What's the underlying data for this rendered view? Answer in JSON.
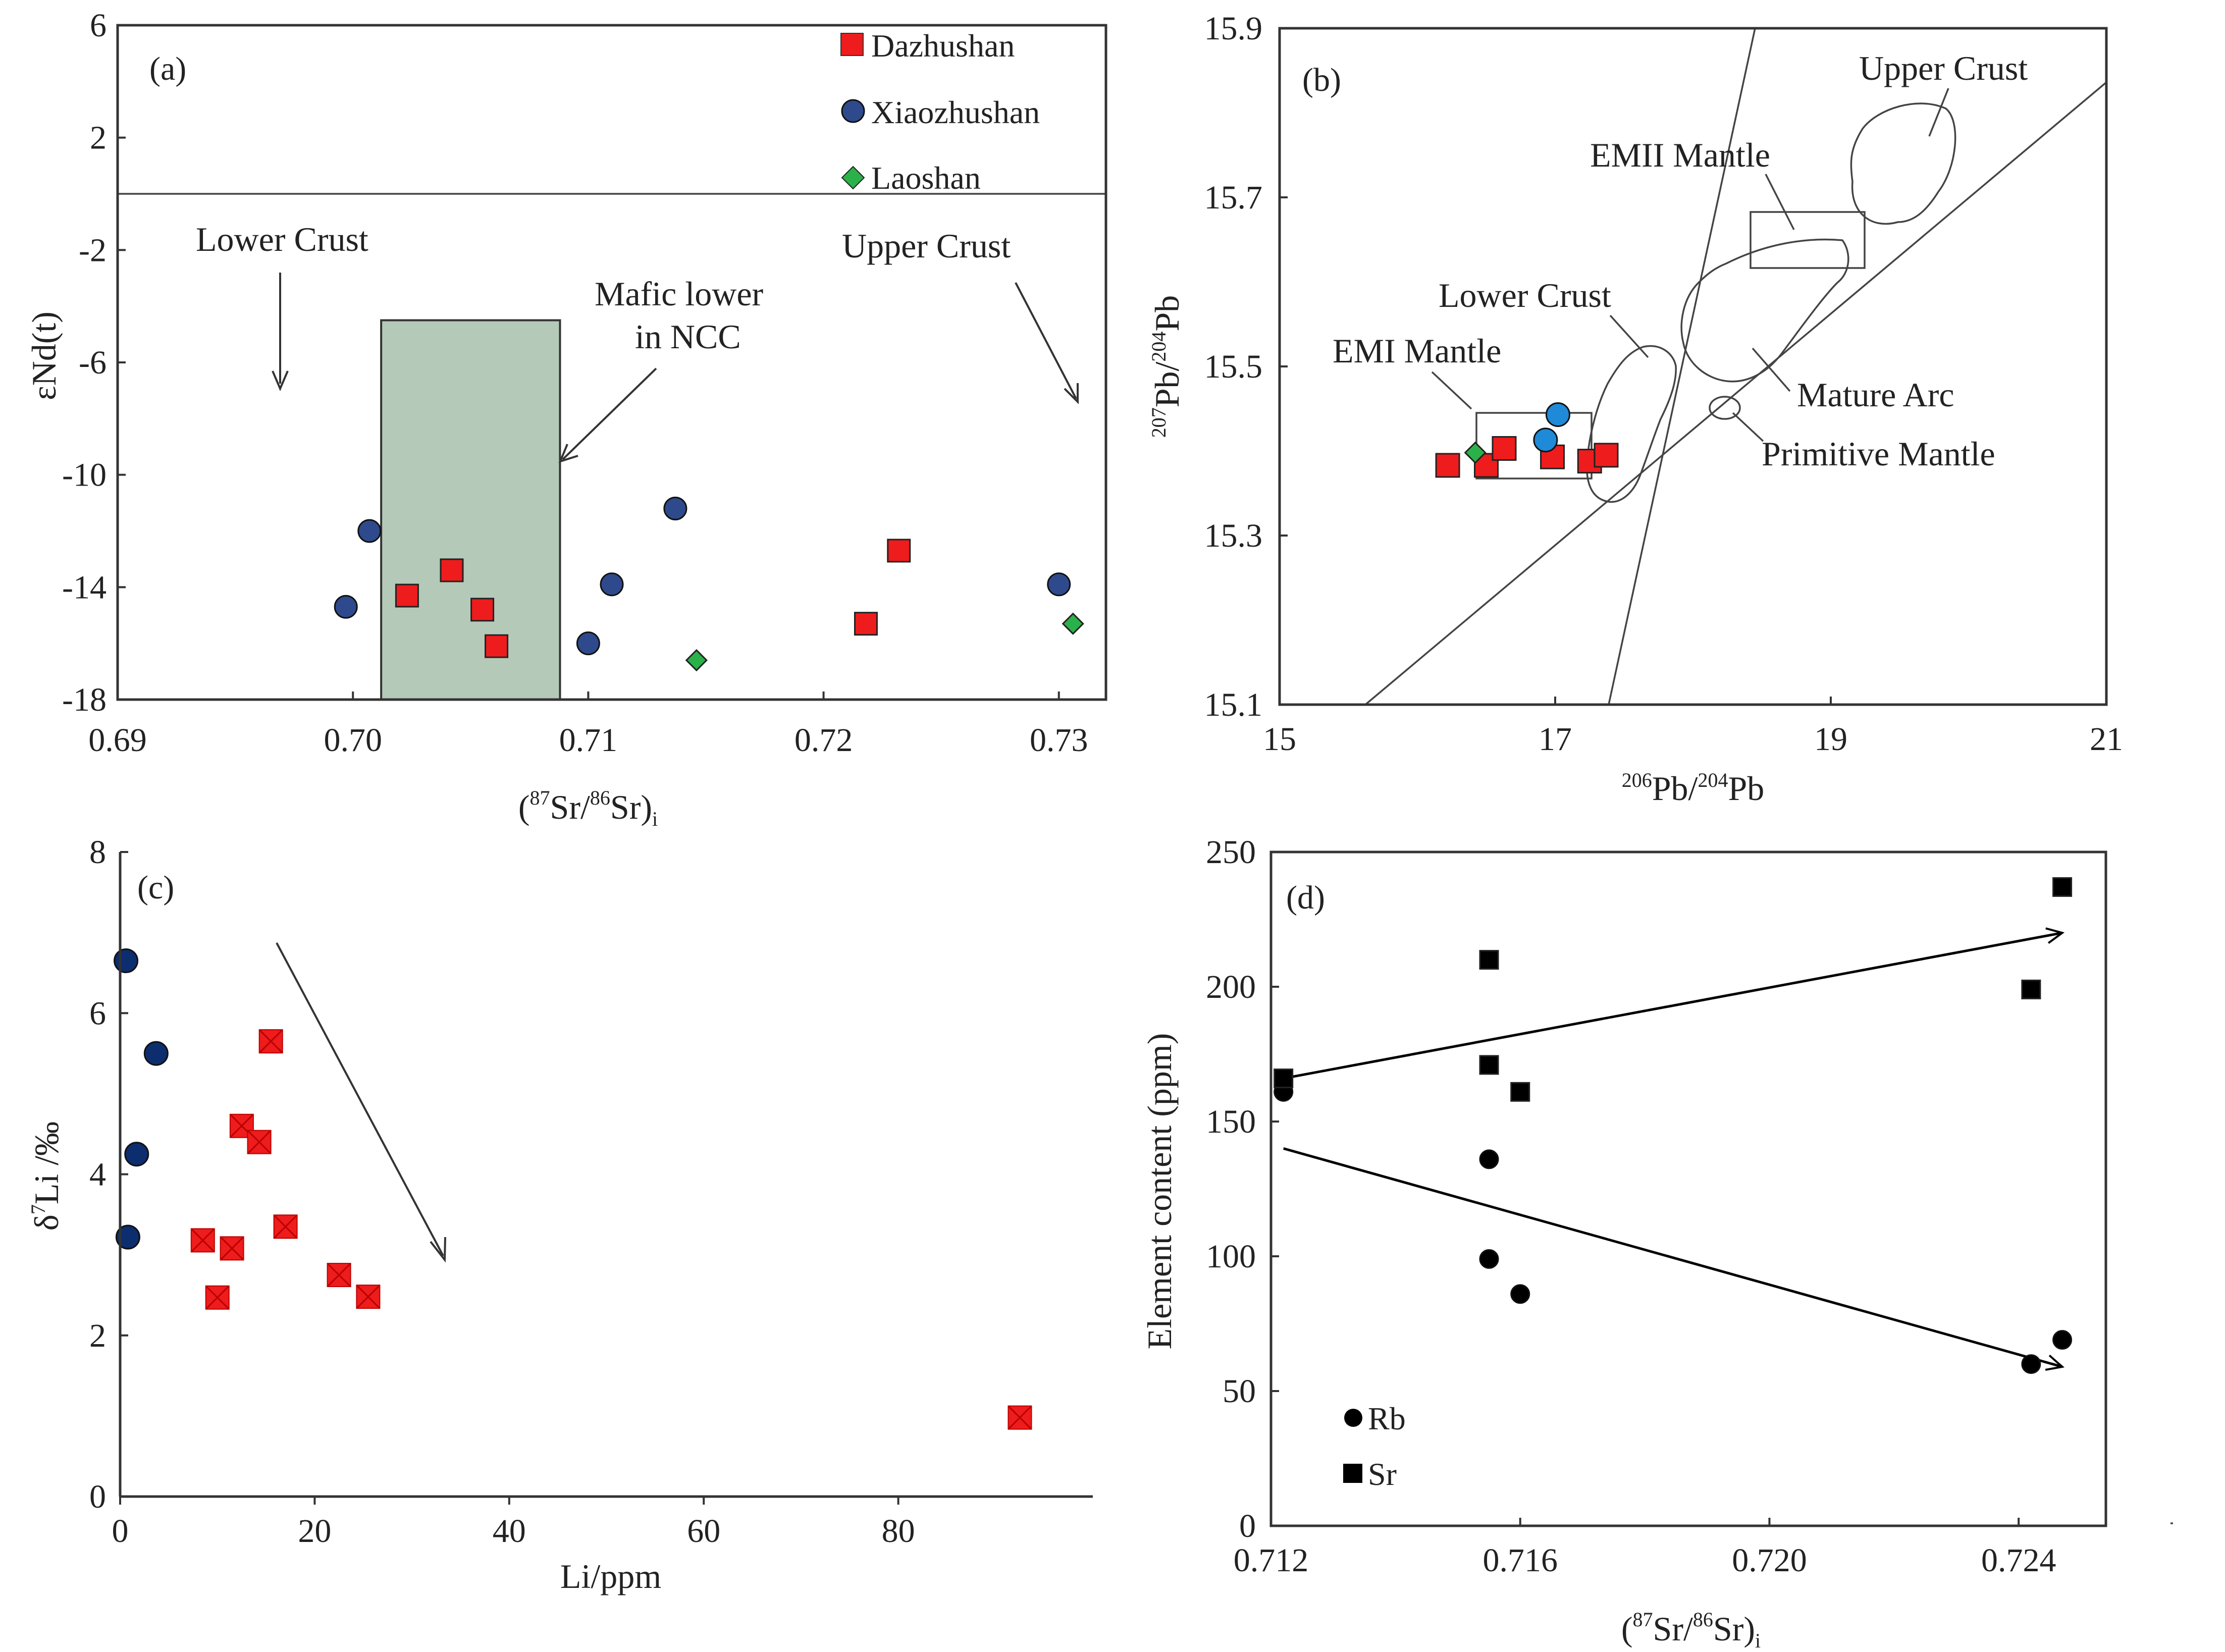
{
  "figure": {
    "series_colors": {
      "Dazhushan": "#ee1c1c",
      "Xiaozhushan": "#2e4a8c",
      "Xiaozhushan_b": "#1f8ad8",
      "Xiaozhushan_c": "#0c2d6e",
      "Laoshan": "#2bb14a",
      "Rb": "#000000",
      "Sr": "#000000",
      "mafic_fill": "#b5c9b8"
    }
  },
  "chart_data": [
    {
      "panel": "a",
      "type": "scatter",
      "label": "(a)",
      "xlabel": "(87Sr/86Sr)i",
      "xlabel_parts": {
        "open": "(",
        "sup1": "87",
        "mid": "Sr/",
        "sup2": "86",
        "close": "Sr)",
        "sub": "i"
      },
      "ylabel": "εNd(t)",
      "xlim": [
        0.69,
        0.732
      ],
      "ylim": [
        -18,
        6
      ],
      "xticks": [
        0.69,
        0.7,
        0.71,
        0.72,
        0.73
      ],
      "xtick_labels": [
        "0.69",
        "0.70",
        "0.71",
        "0.72",
        "0.73"
      ],
      "yticks": [
        -18,
        -14,
        -10,
        -6,
        -2,
        2,
        6
      ],
      "ytick_labels": [
        "-18",
        "-14",
        "-10",
        "-6",
        "-2",
        "2",
        "6"
      ],
      "hline": 0,
      "mafic_box": {
        "x": [
          0.7012,
          0.7088
        ],
        "y": [
          -18,
          -4.5
        ],
        "label": "Mafic lower in NCC"
      },
      "legend": [
        "Dazhushan",
        "Xiaozhushan",
        "Laoshan"
      ],
      "series": [
        {
          "name": "Dazhushan",
          "marker": "square",
          "points": [
            [
              0.7023,
              -14.3
            ],
            [
              0.7042,
              -13.4
            ],
            [
              0.7055,
              -14.8
            ],
            [
              0.7061,
              -16.1
            ],
            [
              0.7218,
              -15.3
            ],
            [
              0.7232,
              -12.7
            ]
          ]
        },
        {
          "name": "Xiaozhushan",
          "marker": "circle",
          "points": [
            [
              0.6997,
              -14.7
            ],
            [
              0.7007,
              -12.0
            ],
            [
              0.71,
              -16.0
            ],
            [
              0.711,
              -13.9
            ],
            [
              0.7137,
              -11.2
            ],
            [
              0.73,
              -13.9
            ]
          ]
        },
        {
          "name": "Laoshan",
          "marker": "diamond",
          "points": [
            [
              0.7146,
              -16.6
            ],
            [
              0.7306,
              -15.3
            ]
          ]
        }
      ],
      "annotations": {
        "lower_crust": "Lower Crust",
        "upper_crust": "Upper Crust",
        "mafic_line1": "Mafic lower",
        "mafic_line2": "in NCC"
      }
    },
    {
      "panel": "b",
      "type": "scatter",
      "label": "(b)",
      "xlabel": "206Pb/204Pb",
      "xlabel_parts": {
        "sup1": "206",
        "mid": "Pb/",
        "sup2": "204",
        "end": "Pb"
      },
      "ylabel": "207Pb/204Pb",
      "ylabel_parts": {
        "sup1": "207",
        "mid": "Pb/",
        "sup2": "204",
        "end": "Pb"
      },
      "xlim": [
        15,
        21
      ],
      "ylim": [
        15.1,
        15.9
      ],
      "xticks": [
        15,
        17,
        19,
        21
      ],
      "xtick_labels": [
        "15",
        "17",
        "19",
        "21"
      ],
      "yticks": [
        15.1,
        15.3,
        15.5,
        15.7,
        15.9
      ],
      "ytick_labels": [
        "15.1",
        "15.3",
        "15.5",
        "15.7",
        "15.9"
      ],
      "series": [
        {
          "name": "Dazhushan",
          "marker": "square",
          "points": [
            [
              16.22,
              15.383
            ],
            [
              16.5,
              15.383
            ],
            [
              16.63,
              15.403
            ],
            [
              16.98,
              15.393
            ],
            [
              17.25,
              15.388
            ],
            [
              17.37,
              15.395
            ]
          ]
        },
        {
          "name": "Xiaozhushan",
          "marker": "circle",
          "points": [
            [
              16.93,
              15.413
            ],
            [
              17.02,
              15.443
            ]
          ]
        },
        {
          "name": "Laoshan",
          "marker": "diamond",
          "points": [
            [
              16.42,
              15.398
            ]
          ]
        }
      ],
      "annotations": {
        "upper_crust": "Upper Crust",
        "emii": "EMII Mantle",
        "lower_crust": "Lower Crust",
        "emi": "EMI Mantle",
        "mature_arc": "Mature Arc",
        "primitive_mantle": "Primitive Mantle"
      }
    },
    {
      "panel": "c",
      "type": "scatter",
      "label": "(c)",
      "xlabel": "Li/ppm",
      "ylabel": "δ7Li /‰",
      "ylabel_parts": {
        "pre": "δ",
        "sup": "7",
        "post": "Li /‰"
      },
      "xlim": [
        0,
        100
      ],
      "ylim": [
        0,
        8
      ],
      "xticks": [
        0,
        20,
        40,
        60,
        80
      ],
      "xtick_labels": [
        "0",
        "20",
        "40",
        "60",
        "80"
      ],
      "yticks": [
        0,
        2,
        4,
        6,
        8
      ],
      "ytick_labels": [
        "0",
        "2",
        "4",
        "6",
        "8"
      ],
      "series": [
        {
          "name": "Xiaozhushan",
          "marker": "circle",
          "points": [
            [
              0.6,
              6.65
            ],
            [
              3.7,
              5.5
            ],
            [
              1.7,
              4.25
            ],
            [
              0.8,
              3.22
            ]
          ]
        },
        {
          "name": "Dazhushan",
          "marker": "square-x",
          "points": [
            [
              15.5,
              5.65
            ],
            [
              12.5,
              4.6
            ],
            [
              14.3,
              4.4
            ],
            [
              17.0,
              3.35
            ],
            [
              8.5,
              3.18
            ],
            [
              11.5,
              3.08
            ],
            [
              10.0,
              2.47
            ],
            [
              22.5,
              2.75
            ],
            [
              25.5,
              2.48
            ],
            [
              92.5,
              0.98
            ]
          ]
        }
      ]
    },
    {
      "panel": "d",
      "type": "scatter",
      "label": "(d)",
      "xlabel": "(87Sr/86Sr)i",
      "xlabel_parts": {
        "open": "(",
        "sup1": "87",
        "mid": "Sr/",
        "sup2": "86",
        "close": "Sr)",
        "sub": "i"
      },
      "ylabel": "Element content (ppm)",
      "xlim": [
        0.712,
        0.7254
      ],
      "ylim": [
        0,
        250
      ],
      "xticks": [
        0.712,
        0.716,
        0.72,
        0.724
      ],
      "xtick_labels": [
        "0.712",
        "0.716",
        "0.720",
        "0.724"
      ],
      "yticks": [
        0,
        50,
        100,
        150,
        200,
        250
      ],
      "ytick_labels": [
        "0",
        "50",
        "100",
        "150",
        "200",
        "250"
      ],
      "legend": [
        "Rb",
        "Sr"
      ],
      "series": [
        {
          "name": "Rb",
          "marker": "circle",
          "points": [
            [
              0.7122,
              161
            ],
            [
              0.7155,
              136
            ],
            [
              0.7155,
              99
            ],
            [
              0.716,
              86
            ],
            [
              0.7242,
              60
            ],
            [
              0.7247,
              69
            ]
          ]
        },
        {
          "name": "Sr",
          "marker": "square",
          "points": [
            [
              0.7122,
              166
            ],
            [
              0.7155,
              210
            ],
            [
              0.7155,
              171
            ],
            [
              0.716,
              161
            ],
            [
              0.7242,
              199
            ],
            [
              0.7247,
              237
            ]
          ]
        }
      ],
      "trends": [
        {
          "name": "Sr trend",
          "from": [
            0.7122,
            166
          ],
          "to": [
            0.7247,
            220
          ]
        },
        {
          "name": "Rb trend",
          "from": [
            0.7122,
            140
          ],
          "to": [
            0.7247,
            59
          ]
        }
      ]
    }
  ]
}
